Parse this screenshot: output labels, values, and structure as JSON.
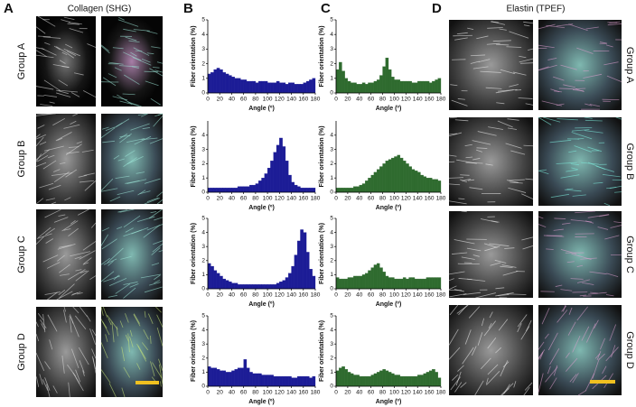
{
  "figure": {
    "panel_labels": [
      "A",
      "B",
      "C",
      "D"
    ],
    "collagen_title": "Collagen (SHG)",
    "elastin_title": "Elastin (TPEF)",
    "groups": [
      "Group A",
      "Group B",
      "Group C",
      "Group D"
    ]
  },
  "chart_data": [
    {
      "type": "histogram",
      "y_label": "Fiber orientation (%)",
      "x_label": "Angle (º)",
      "color": "#1c1c96",
      "xlim": [
        0,
        180
      ],
      "ylim": [
        0,
        5
      ],
      "xticks": [
        0,
        20,
        40,
        60,
        80,
        100,
        120,
        140,
        160,
        180
      ],
      "yticks": [
        0,
        1,
        2,
        3,
        4,
        5
      ],
      "bins": [
        0,
        5,
        10,
        15,
        20,
        25,
        30,
        35,
        40,
        45,
        50,
        55,
        60,
        65,
        70,
        75,
        80,
        85,
        90,
        95,
        100,
        105,
        110,
        115,
        120,
        125,
        130,
        135,
        140,
        145,
        150,
        155,
        160,
        165,
        170,
        175,
        180
      ],
      "values": [
        1.3,
        1.4,
        1.6,
        1.7,
        1.6,
        1.4,
        1.3,
        1.2,
        1.1,
        1.0,
        1.0,
        0.9,
        0.9,
        0.8,
        0.8,
        0.8,
        0.7,
        0.8,
        0.8,
        0.8,
        0.7,
        0.7,
        0.7,
        0.8,
        0.7,
        0.7,
        0.6,
        0.7,
        0.7,
        0.6,
        0.6,
        0.6,
        0.7,
        0.8,
        0.9,
        1.0
      ]
    },
    {
      "type": "histogram",
      "y_label": "Fiber orientation (%)",
      "x_label": "Angle (º)",
      "color": "#1c1c96",
      "xlim": [
        0,
        180
      ],
      "ylim": [
        0,
        5
      ],
      "xticks": [
        0,
        20,
        40,
        60,
        80,
        100,
        120,
        140,
        160,
        180
      ],
      "yticks": [
        0,
        1,
        2,
        3,
        4
      ],
      "bins": [
        0,
        5,
        10,
        15,
        20,
        25,
        30,
        35,
        40,
        45,
        50,
        55,
        60,
        65,
        70,
        75,
        80,
        85,
        90,
        95,
        100,
        105,
        110,
        115,
        120,
        125,
        130,
        135,
        140,
        145,
        150,
        155,
        160,
        165,
        170,
        175,
        180
      ],
      "values": [
        0.3,
        0.3,
        0.3,
        0.3,
        0.3,
        0.3,
        0.3,
        0.3,
        0.3,
        0.3,
        0.4,
        0.4,
        0.4,
        0.4,
        0.5,
        0.5,
        0.6,
        0.8,
        1.0,
        1.3,
        1.7,
        2.2,
        2.8,
        3.3,
        3.8,
        3.2,
        2.2,
        1.2,
        0.7,
        0.5,
        0.4,
        0.3,
        0.3,
        0.3,
        0.3,
        0.3
      ]
    },
    {
      "type": "histogram",
      "y_label": "Fiber orientation (%)",
      "x_label": "Angle (º)",
      "color": "#1c1c96",
      "xlim": [
        0,
        180
      ],
      "ylim": [
        0,
        5
      ],
      "xticks": [
        0,
        20,
        40,
        60,
        80,
        100,
        120,
        140,
        160,
        180
      ],
      "yticks": [
        0,
        1,
        2,
        3,
        4,
        5
      ],
      "bins": [
        0,
        5,
        10,
        15,
        20,
        25,
        30,
        35,
        40,
        45,
        50,
        55,
        60,
        65,
        70,
        75,
        80,
        85,
        90,
        95,
        100,
        105,
        110,
        115,
        120,
        125,
        130,
        135,
        140,
        145,
        150,
        155,
        160,
        165,
        170,
        175,
        180
      ],
      "values": [
        1.8,
        1.6,
        1.3,
        1.1,
        0.9,
        0.7,
        0.6,
        0.5,
        0.4,
        0.4,
        0.3,
        0.3,
        0.3,
        0.3,
        0.3,
        0.3,
        0.3,
        0.3,
        0.3,
        0.3,
        0.3,
        0.3,
        0.3,
        0.4,
        0.5,
        0.6,
        0.8,
        1.1,
        1.6,
        2.4,
        3.4,
        4.2,
        4.0,
        2.6,
        1.4,
        0.9
      ]
    },
    {
      "type": "histogram",
      "y_label": "Fiber orientation (%)",
      "x_label": "Angle (º)",
      "color": "#1c1c96",
      "xlim": [
        0,
        180
      ],
      "ylim": [
        0,
        5
      ],
      "xticks": [
        0,
        20,
        40,
        60,
        80,
        100,
        120,
        140,
        160,
        180
      ],
      "yticks": [
        0,
        1,
        2,
        3,
        4,
        5
      ],
      "bins": [
        0,
        5,
        10,
        15,
        20,
        25,
        30,
        35,
        40,
        45,
        50,
        55,
        60,
        65,
        70,
        75,
        80,
        85,
        90,
        95,
        100,
        105,
        110,
        115,
        120,
        125,
        130,
        135,
        140,
        145,
        150,
        155,
        160,
        165,
        170,
        175,
        180
      ],
      "values": [
        1.4,
        1.3,
        1.3,
        1.2,
        1.1,
        1.1,
        1.0,
        1.0,
        1.1,
        1.2,
        1.3,
        1.3,
        1.9,
        1.3,
        1.0,
        0.9,
        0.9,
        0.9,
        0.8,
        0.8,
        0.8,
        0.8,
        0.7,
        0.7,
        0.7,
        0.7,
        0.7,
        0.7,
        0.6,
        0.6,
        0.7,
        0.7,
        0.7,
        0.7,
        0.6,
        0.7
      ]
    },
    {
      "type": "histogram",
      "y_label": "Fiber orientation (%)",
      "x_label": "Angle (º)",
      "color": "#2f6b2f",
      "xlim": [
        0,
        180
      ],
      "ylim": [
        0,
        5
      ],
      "xticks": [
        0,
        20,
        40,
        60,
        80,
        100,
        120,
        140,
        160,
        180
      ],
      "yticks": [
        0,
        1,
        2,
        3,
        4,
        5
      ],
      "bins": [
        0,
        5,
        10,
        15,
        20,
        25,
        30,
        35,
        40,
        45,
        50,
        55,
        60,
        65,
        70,
        75,
        80,
        85,
        90,
        95,
        100,
        105,
        110,
        115,
        120,
        125,
        130,
        135,
        140,
        145,
        150,
        155,
        160,
        165,
        170,
        175,
        180
      ],
      "values": [
        1.6,
        2.1,
        1.5,
        1.0,
        0.8,
        0.7,
        0.7,
        0.6,
        0.6,
        0.7,
        0.6,
        0.7,
        0.7,
        0.8,
        0.9,
        1.2,
        1.8,
        2.4,
        1.6,
        1.1,
        0.9,
        0.9,
        0.8,
        0.8,
        0.8,
        0.8,
        0.7,
        0.7,
        0.8,
        0.8,
        0.8,
        0.8,
        0.7,
        0.8,
        0.9,
        1.0
      ]
    },
    {
      "type": "histogram",
      "y_label": "Fiber orientation (%)",
      "x_label": "Angle (º)",
      "color": "#2f6b2f",
      "xlim": [
        0,
        180
      ],
      "ylim": [
        0,
        5
      ],
      "xticks": [
        0,
        20,
        40,
        60,
        80,
        100,
        120,
        140,
        160,
        180
      ],
      "yticks": [
        0,
        1,
        2,
        3,
        4
      ],
      "bins": [
        0,
        5,
        10,
        15,
        20,
        25,
        30,
        35,
        40,
        45,
        50,
        55,
        60,
        65,
        70,
        75,
        80,
        85,
        90,
        95,
        100,
        105,
        110,
        115,
        120,
        125,
        130,
        135,
        140,
        145,
        150,
        155,
        160,
        165,
        170,
        175,
        180
      ],
      "values": [
        0.3,
        0.3,
        0.3,
        0.3,
        0.3,
        0.3,
        0.4,
        0.4,
        0.5,
        0.6,
        0.8,
        1.0,
        1.2,
        1.4,
        1.6,
        1.8,
        2.0,
        2.2,
        2.3,
        2.4,
        2.5,
        2.6,
        2.4,
        2.2,
        2.0,
        1.8,
        1.6,
        1.5,
        1.4,
        1.2,
        1.1,
        1.0,
        1.0,
        0.9,
        0.9,
        0.8
      ]
    },
    {
      "type": "histogram",
      "y_label": "Fiber orientation (%)",
      "x_label": "Angle (º)",
      "color": "#2f6b2f",
      "xlim": [
        0,
        180
      ],
      "ylim": [
        0,
        5
      ],
      "xticks": [
        0,
        20,
        40,
        60,
        80,
        100,
        120,
        140,
        160,
        180
      ],
      "yticks": [
        0,
        1,
        2,
        3,
        4,
        5
      ],
      "bins": [
        0,
        5,
        10,
        15,
        20,
        25,
        30,
        35,
        40,
        45,
        50,
        55,
        60,
        65,
        70,
        75,
        80,
        85,
        90,
        95,
        100,
        105,
        110,
        115,
        120,
        125,
        130,
        135,
        140,
        145,
        150,
        155,
        160,
        165,
        170,
        175,
        180
      ],
      "values": [
        0.8,
        0.7,
        0.7,
        0.7,
        0.8,
        0.8,
        0.9,
        0.9,
        0.9,
        1.0,
        1.1,
        1.3,
        1.5,
        1.7,
        1.8,
        1.5,
        1.2,
        0.9,
        0.8,
        0.8,
        0.7,
        0.7,
        0.7,
        0.8,
        0.7,
        0.8,
        0.8,
        0.7,
        0.7,
        0.7,
        0.7,
        0.8,
        0.8,
        0.8,
        0.8,
        0.8
      ]
    },
    {
      "type": "histogram",
      "y_label": "Fiber orientation (%)",
      "x_label": "Angle (º)",
      "color": "#2f6b2f",
      "xlim": [
        0,
        180
      ],
      "ylim": [
        0,
        5
      ],
      "xticks": [
        0,
        20,
        40,
        60,
        80,
        100,
        120,
        140,
        160,
        180
      ],
      "yticks": [
        0,
        1,
        2,
        3,
        4,
        5
      ],
      "bins": [
        0,
        5,
        10,
        15,
        20,
        25,
        30,
        35,
        40,
        45,
        50,
        55,
        60,
        65,
        70,
        75,
        80,
        85,
        90,
        95,
        100,
        105,
        110,
        115,
        120,
        125,
        130,
        135,
        140,
        145,
        150,
        155,
        160,
        165,
        170,
        175,
        180
      ],
      "values": [
        1.1,
        1.3,
        1.4,
        1.2,
        1.0,
        0.9,
        0.8,
        0.8,
        0.7,
        0.7,
        0.7,
        0.7,
        0.8,
        0.9,
        1.0,
        1.1,
        1.2,
        1.1,
        1.0,
        0.9,
        0.8,
        0.8,
        0.7,
        0.7,
        0.7,
        0.7,
        0.7,
        0.7,
        0.8,
        0.8,
        0.9,
        1.0,
        1.1,
        1.2,
        1.0,
        0.6
      ]
    }
  ]
}
